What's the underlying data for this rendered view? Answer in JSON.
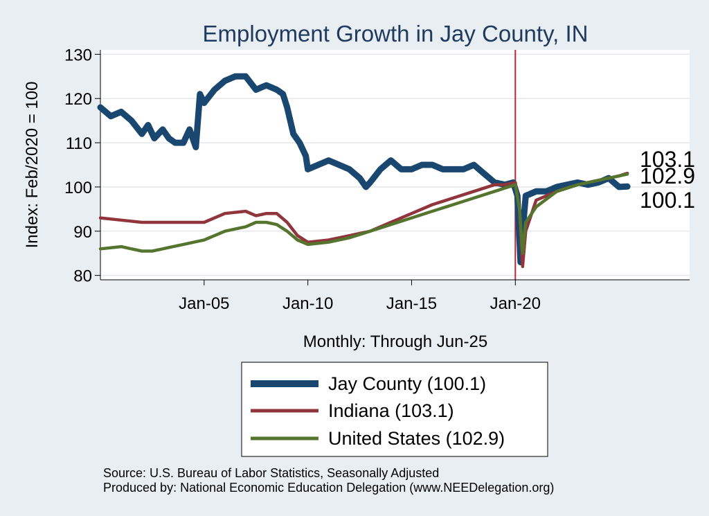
{
  "chart_data": {
    "type": "line",
    "title": "Employment Growth in Jay  County, IN",
    "ylabel": "Index: Feb/2020 = 100",
    "xlabel": "Monthly: Through Jun-25",
    "ylim": [
      79,
      131
    ],
    "yticks": [
      80,
      90,
      100,
      110,
      120,
      130
    ],
    "xlim": [
      2000.0,
      2028.4
    ],
    "xticks": [
      {
        "x": 2005.0,
        "label": "Jan-05"
      },
      {
        "x": 2010.0,
        "label": "Jan-10"
      },
      {
        "x": 2015.0,
        "label": "Jan-15"
      },
      {
        "x": 2020.0,
        "label": "Jan-20"
      }
    ],
    "vline": {
      "x": 2020.0,
      "color": "#c0223a"
    },
    "grid": true,
    "legend_position": "bottom",
    "series": [
      {
        "name": "Jay  County (100.1)",
        "color": "#1a476f",
        "end_label": "100.1",
        "x": [
          2000.0,
          2000.5,
          2001.0,
          2001.5,
          2002.0,
          2002.3,
          2002.6,
          2003.0,
          2003.3,
          2003.6,
          2004.0,
          2004.3,
          2004.6,
          2004.8,
          2005.0,
          2005.5,
          2006.0,
          2006.5,
          2007.0,
          2007.5,
          2008.0,
          2008.5,
          2008.8,
          2009.0,
          2009.3,
          2009.6,
          2009.9,
          2010.0,
          2010.5,
          2011.0,
          2011.5,
          2012.0,
          2012.5,
          2012.8,
          2013.0,
          2013.5,
          2014.0,
          2014.5,
          2015.0,
          2015.5,
          2016.0,
          2016.5,
          2017.0,
          2017.5,
          2018.0,
          2018.5,
          2019.0,
          2019.5,
          2019.9,
          2020.1,
          2020.25,
          2020.35,
          2020.5,
          2021.0,
          2021.5,
          2022.0,
          2022.5,
          2023.0,
          2023.5,
          2024.0,
          2024.5,
          2025.0,
          2025.4
        ],
        "y": [
          118,
          116,
          117,
          115,
          112,
          114,
          111,
          113,
          111,
          110,
          110,
          113,
          109,
          121,
          119,
          122,
          124,
          125,
          125,
          122,
          123,
          122,
          121,
          118,
          112,
          110,
          107,
          104,
          105,
          106,
          105,
          104,
          102,
          100,
          101,
          104,
          106,
          104,
          104,
          105,
          105,
          104,
          104,
          104,
          105,
          103,
          101,
          100.5,
          101,
          98,
          83,
          90,
          98,
          99,
          99,
          100,
          100.5,
          101,
          100.5,
          101,
          102,
          100,
          100.1
        ]
      },
      {
        "name": "Indiana (103.1)",
        "color": "#90353b",
        "end_label": "103.1",
        "x": [
          2000.0,
          2001.0,
          2002.0,
          2003.0,
          2004.0,
          2005.0,
          2006.0,
          2007.0,
          2007.5,
          2008.0,
          2008.5,
          2009.0,
          2009.5,
          2010.0,
          2011.0,
          2012.0,
          2013.0,
          2014.0,
          2015.0,
          2016.0,
          2017.0,
          2018.0,
          2019.0,
          2019.5,
          2020.0,
          2020.2,
          2020.35,
          2020.5,
          2021.0,
          2022.0,
          2023.0,
          2024.0,
          2025.0,
          2025.4
        ],
        "y": [
          93,
          92.5,
          92,
          92,
          92,
          92,
          94,
          94.5,
          93.5,
          94,
          94,
          92,
          89,
          87.5,
          88,
          89,
          90,
          92,
          94,
          96,
          97.5,
          99,
          100.5,
          100.5,
          101,
          95,
          82,
          90,
          97,
          99,
          100.5,
          101.5,
          102.5,
          103.1
        ]
      },
      {
        "name": "United States (102.9)",
        "color": "#55752f",
        "end_label": "102.9",
        "x": [
          2000.0,
          2001.0,
          2001.5,
          2002.0,
          2002.5,
          2003.0,
          2003.5,
          2004.0,
          2004.5,
          2005.0,
          2005.5,
          2006.0,
          2006.5,
          2007.0,
          2007.5,
          2008.0,
          2008.5,
          2009.0,
          2009.5,
          2010.0,
          2011.0,
          2012.0,
          2013.0,
          2014.0,
          2015.0,
          2016.0,
          2017.0,
          2018.0,
          2019.0,
          2020.0,
          2020.2,
          2020.35,
          2020.5,
          2021.0,
          2022.0,
          2023.0,
          2024.0,
          2025.0,
          2025.4
        ],
        "y": [
          86,
          86.5,
          86,
          85.5,
          85.5,
          86,
          86.5,
          87,
          87.5,
          88,
          89,
          90,
          90.5,
          91,
          92,
          92,
          91.5,
          90,
          88,
          87,
          87.5,
          88.5,
          90,
          91.5,
          93,
          94.5,
          96,
          97.5,
          99,
          100.5,
          95,
          85,
          92,
          95.5,
          99,
          100.5,
          101.5,
          102.5,
          102.9
        ]
      }
    ],
    "end_label_order": [
      "103.1",
      "102.9",
      "100.1"
    ]
  },
  "source": {
    "line1": "Source: U.S. Bureau of Labor Statistics, Seasonally Adjusted",
    "line2": "Produced by: National Economic Education Delegation (www.NEEDelegation.org)"
  }
}
